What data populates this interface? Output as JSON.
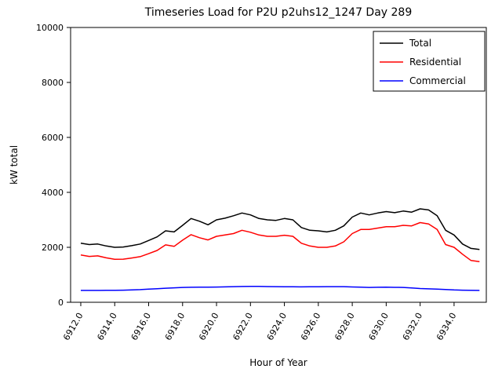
{
  "title": "Timeseries Load for P2U p2uhs12_1247  Day 289",
  "colors": {
    "total": "#000000",
    "residential": "#ff0000",
    "commercial": "#0000ff",
    "frame": "#000000",
    "background": "#ffffff"
  },
  "chart_data": {
    "type": "line",
    "title": "Timeseries Load for P2U p2uhs12_1247  Day 289",
    "xlabel": "Hour of Year",
    "ylabel": "kW total",
    "xlim": [
      6911.4,
      6935.9
    ],
    "ylim": [
      0,
      10000
    ],
    "yticks": [
      0,
      2000,
      4000,
      6000,
      8000,
      10000
    ],
    "ytick_labels": [
      "0",
      "2000",
      "4000",
      "6000",
      "8000",
      "10000"
    ],
    "xticks": [
      6912,
      6914,
      6916,
      6918,
      6920,
      6922,
      6924,
      6926,
      6928,
      6930,
      6932,
      6934
    ],
    "xtick_labels": [
      "6912.0",
      "6914.0",
      "6916.0",
      "6918.0",
      "6920.0",
      "6922.0",
      "6924.0",
      "6926.0",
      "6928.0",
      "6930.0",
      "6932.0",
      "6934.0"
    ],
    "grid": false,
    "legend": {
      "position": "upper right",
      "entries": [
        {
          "label": "Total",
          "color": "#000000"
        },
        {
          "label": "Residential",
          "color": "#ff0000"
        },
        {
          "label": "Commercial",
          "color": "#0000ff"
        }
      ]
    },
    "x": [
      6912.0,
      6912.5,
      6913.0,
      6913.5,
      6914.0,
      6914.5,
      6915.0,
      6915.5,
      6916.0,
      6916.5,
      6917.0,
      6917.5,
      6918.0,
      6918.5,
      6919.0,
      6919.5,
      6920.0,
      6920.5,
      6921.0,
      6921.5,
      6922.0,
      6922.5,
      6923.0,
      6923.5,
      6924.0,
      6924.5,
      6925.0,
      6925.5,
      6926.0,
      6926.5,
      6927.0,
      6927.5,
      6928.0,
      6928.5,
      6929.0,
      6929.5,
      6930.0,
      6930.5,
      6931.0,
      6931.5,
      6932.0,
      6932.5,
      6933.0,
      6933.5,
      6934.0,
      6934.5,
      6935.0,
      6935.5
    ],
    "series": [
      {
        "name": "Total",
        "color": "#000000",
        "values": [
          2150,
          2100,
          2120,
          2050,
          2000,
          2010,
          2060,
          2120,
          2250,
          2380,
          2600,
          2560,
          2800,
          3050,
          2950,
          2820,
          3000,
          3060,
          3150,
          3250,
          3180,
          3050,
          3000,
          2980,
          3050,
          3000,
          2720,
          2620,
          2600,
          2560,
          2620,
          2780,
          3100,
          3250,
          3180,
          3250,
          3300,
          3260,
          3320,
          3280,
          3400,
          3360,
          3150,
          2620,
          2450,
          2120,
          1960,
          1920
        ]
      },
      {
        "name": "Residential",
        "color": "#ff0000",
        "values": [
          1720,
          1670,
          1688,
          1617,
          1565,
          1570,
          1610,
          1660,
          1770,
          1885,
          2090,
          2035,
          2260,
          2460,
          2350,
          2270,
          2400,
          2450,
          2500,
          2620,
          2550,
          2450,
          2400,
          2400,
          2440,
          2400,
          2150,
          2050,
          2000,
          2000,
          2050,
          2200,
          2500,
          2650,
          2650,
          2700,
          2750,
          2750,
          2800,
          2780,
          2900,
          2850,
          2650,
          2100,
          2000,
          1750,
          1520,
          1480
        ]
      },
      {
        "name": "Commercial",
        "color": "#0000ff",
        "values": [
          430,
          430,
          432,
          433,
          435,
          440,
          450,
          460,
          480,
          495,
          510,
          525,
          540,
          545,
          548,
          550,
          555,
          560,
          570,
          575,
          578,
          576,
          572,
          570,
          566,
          563,
          560,
          562,
          565,
          568,
          570,
          568,
          558,
          548,
          540,
          545,
          548,
          543,
          540,
          520,
          500,
          490,
          480,
          465,
          450,
          440,
          435,
          430
        ]
      }
    ]
  }
}
